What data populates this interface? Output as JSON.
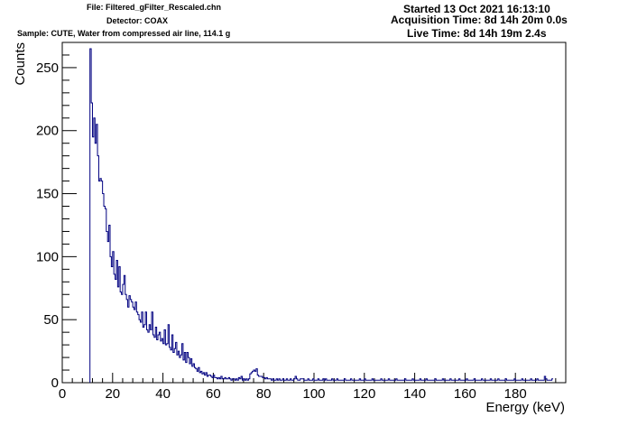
{
  "header": {
    "file": "File: Filtered_gFilter_Rescaled.chn",
    "detector": "Detector: COAX",
    "sample": "Sample: CUTE, Water from compressed air line, 114.1 g",
    "started": "Started 13 Oct 2021 16:13:10",
    "acquisition": "Acquisition Time: 8d 14h 20m 0.0s",
    "live": "Live Time: 8d 14h 19m 2.4s"
  },
  "chart_data": {
    "type": "histogram",
    "xlabel": "Energy (keV)",
    "ylabel": "Counts",
    "xlim": [
      0,
      200
    ],
    "ylim": [
      0,
      270
    ],
    "x_ticks": [
      0,
      20,
      40,
      60,
      80,
      100,
      120,
      140,
      160,
      180
    ],
    "y_ticks": [
      0,
      50,
      100,
      150,
      200,
      250
    ],
    "grid": false,
    "line_color": "#000080",
    "bin_width_keV": 0.5,
    "bin_start_keV": 11,
    "series": [
      {
        "values": [
          265,
          222,
          195,
          210,
          190,
          205,
          180,
          160,
          162,
          160,
          150,
          140,
          138,
          120,
          112,
          125,
          100,
          92,
          104,
          86,
          82,
          97,
          76,
          92,
          72,
          70,
          78,
          85,
          70,
          66,
          60,
          69,
          66,
          64,
          60,
          58,
          64,
          56,
          54,
          50,
          48,
          56,
          44,
          46,
          56,
          42,
          40,
          46,
          42,
          56,
          38,
          36,
          44,
          34,
          38,
          40,
          33,
          35,
          31,
          42,
          30,
          31,
          46,
          28,
          26,
          38,
          24,
          27,
          32,
          22,
          25,
          20,
          22,
          31,
          18,
          24,
          16,
          24,
          20,
          15,
          19,
          13,
          15,
          12,
          11,
          9,
          12,
          8,
          9,
          7,
          8,
          6,
          8,
          5,
          6,
          6,
          5,
          4,
          6,
          4,
          4,
          3,
          4,
          3,
          5,
          3,
          3,
          4,
          3,
          3,
          4,
          3,
          2,
          3,
          3,
          2,
          3,
          2,
          4,
          3,
          5,
          2,
          3,
          2,
          3,
          2,
          3,
          7,
          8,
          9,
          10,
          9,
          11,
          6,
          5,
          5,
          5,
          4,
          4,
          3,
          4,
          3,
          3,
          3,
          2,
          3,
          2,
          2,
          3,
          2,
          3,
          2,
          2,
          3,
          2,
          2,
          3,
          2,
          2,
          3,
          2,
          2,
          3,
          5,
          3,
          2,
          2,
          3,
          3,
          3,
          2,
          2,
          2,
          3,
          2,
          2,
          2,
          3,
          2,
          2,
          2,
          3,
          2,
          2,
          2,
          3,
          2,
          3,
          2,
          2,
          2,
          2,
          3,
          2,
          2,
          2,
          3,
          2,
          2,
          2,
          2,
          2,
          3,
          2,
          2,
          2,
          2,
          3,
          2,
          2,
          2,
          2,
          2,
          2,
          3,
          2,
          2,
          2,
          3,
          2,
          2,
          2,
          2,
          2,
          3,
          2,
          2,
          2,
          2,
          2,
          2,
          3,
          2,
          2,
          2,
          2,
          2,
          3,
          2,
          2,
          2,
          2,
          2,
          3,
          2,
          2,
          2,
          2,
          2,
          2,
          3,
          2,
          2,
          2,
          2,
          2,
          3,
          2,
          2,
          2,
          2,
          2,
          3,
          2,
          2,
          2,
          2,
          3,
          2,
          2,
          2,
          2,
          2,
          2,
          3,
          2,
          2,
          2,
          2,
          2,
          3,
          2,
          2,
          2,
          2,
          2,
          3,
          2,
          2,
          2,
          2,
          2,
          2,
          3,
          2,
          2,
          2,
          2,
          2,
          3,
          2,
          2,
          2,
          2,
          2,
          3,
          2,
          2,
          2,
          2,
          2,
          3,
          2,
          2,
          2,
          2,
          2,
          2,
          3,
          2,
          2,
          2,
          2,
          2,
          3,
          2,
          2,
          2,
          2,
          2,
          3,
          2,
          2,
          2,
          2,
          2,
          2,
          3,
          2,
          2,
          2,
          2,
          2,
          3,
          2,
          2,
          2,
          2,
          2,
          2,
          3,
          2,
          2,
          2,
          2,
          3,
          2,
          2,
          2,
          2,
          2,
          5,
          3,
          2,
          2,
          2,
          2,
          3
        ]
      }
    ]
  }
}
